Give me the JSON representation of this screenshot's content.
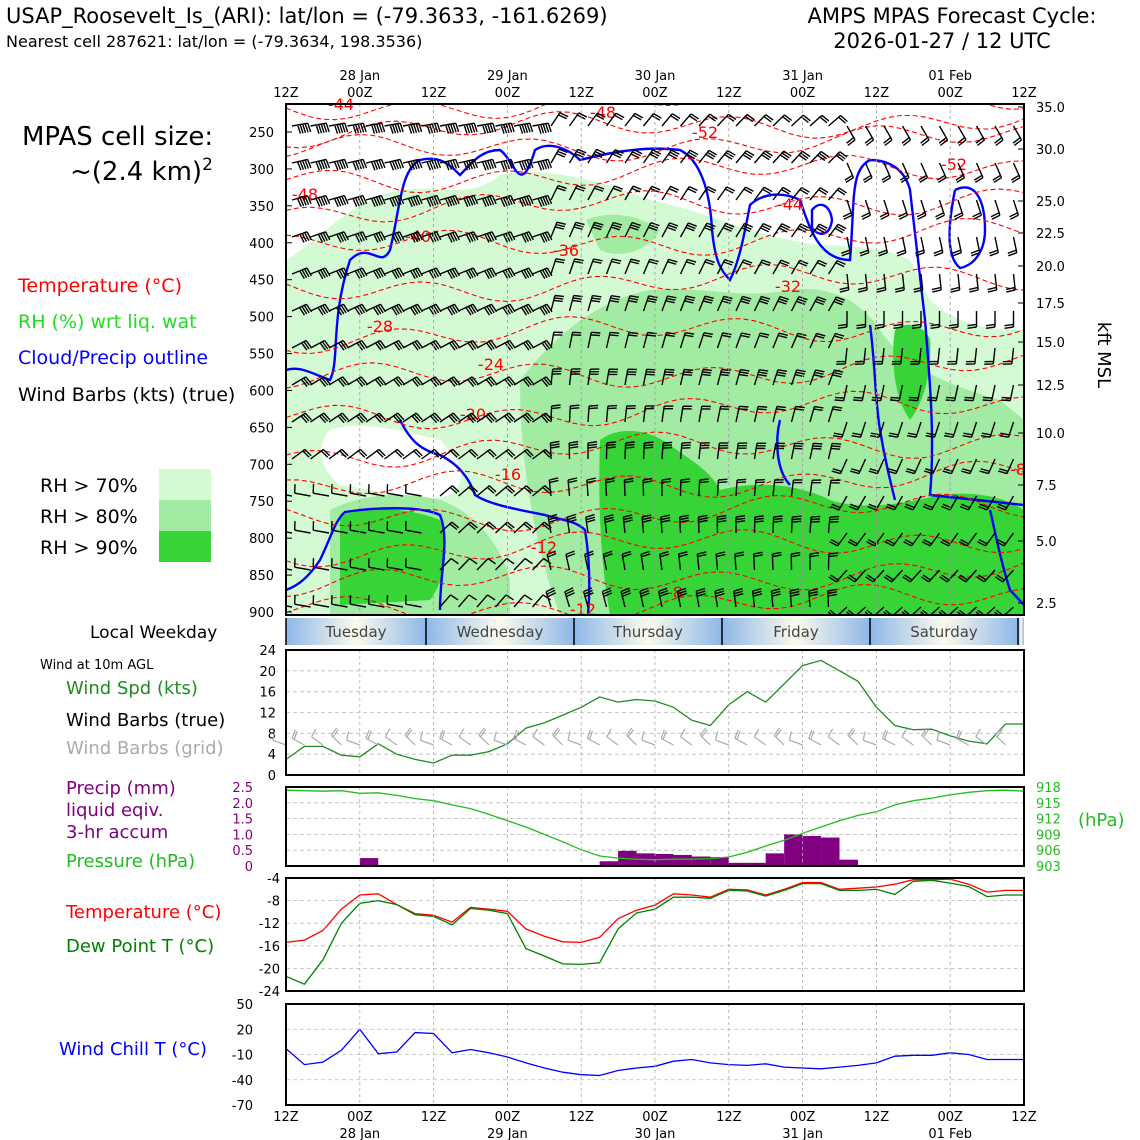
{
  "header": {
    "station_line": "USAP_Roosevelt_Is_(ARI): lat/lon = (-79.3633, -161.6269)",
    "cell_line": "Nearest cell 287621: lat/lon = (-79.3634, 198.3536)",
    "forecast_line1": "AMPS MPAS Forecast Cycle:",
    "forecast_line2": "2026-01-27 / 12 UTC"
  },
  "left_legend": {
    "cell_size_1": "MPAS cell size:",
    "cell_size_2": "~(2.4 km)",
    "cell_size_sup": "2",
    "temperature": "Temperature (°C)",
    "rh": "RH (%) wrt liq. wat",
    "cloud": "Cloud/Precip outline",
    "barbs": "Wind Barbs (kts) (true)",
    "rh70": "RH > 70%",
    "rh80": "RH > 80%",
    "rh90": "RH > 90%",
    "local_weekday": "Local Weekday",
    "wind10m": "Wind at 10m AGL",
    "wind_spd": "Wind Spd (kts)",
    "wind_barbs_true": "Wind Barbs (true)",
    "wind_barbs_grid": "Wind Barbs (grid)",
    "precip1": "Precip (mm)",
    "precip2": "liquid eqiv.",
    "precip3": "3-hr accum",
    "pressure": "Pressure (hPa)",
    "temp2": "Temperature (°C)",
    "dewpoint": "Dew Point T (°C)",
    "windchill": "Wind Chill T (°C)"
  },
  "colors": {
    "rh70": "#d4fad4",
    "rh80": "#a2eba2",
    "rh90": "#36d436",
    "temperature": "#ff0000",
    "cloud": "#0000ff",
    "precip": "#800080",
    "pressure": "#22bb22",
    "wind_speed": "#228b22",
    "grid_barb": "#aaaaaa"
  },
  "time_axis": {
    "top_ticks": [
      "12Z",
      "00Z",
      "12Z",
      "00Z",
      "12Z",
      "00Z",
      "12Z",
      "00Z",
      "12Z",
      "00Z",
      "12Z"
    ],
    "date_labels": [
      "28 Jan",
      "29 Jan",
      "30 Jan",
      "31 Jan",
      "01 Feb"
    ],
    "weekdays": [
      "Tuesday",
      "Wednesday",
      "Thursday",
      "Friday",
      "Saturday"
    ]
  },
  "chart_data": [
    {
      "type": "heatmap",
      "name": "vertical cross-section",
      "y_left_ticks": [
        "250",
        "300",
        "350",
        "400",
        "450",
        "500",
        "550",
        "600",
        "650",
        "700",
        "750",
        "800",
        "850",
        "900"
      ],
      "y_right_ticks": [
        "35.0",
        "30.0",
        "25.0",
        "22.5",
        "20.0",
        "17.5",
        "15.0",
        "12.5",
        "10.0",
        "7.5",
        "5.0",
        "2.5"
      ],
      "y_right_label": "kft MSL",
      "contour_labels": [
        "-48",
        "-52",
        "-52",
        "-48",
        "-44",
        "-40",
        "-36",
        "-32",
        "-28",
        "-24",
        "-20",
        "-16",
        "-12",
        "-12",
        "-8",
        "-8",
        "-44"
      ]
    },
    {
      "type": "line",
      "name": "wind speed",
      "x_hours": [
        0,
        3,
        6,
        9,
        12,
        15,
        18,
        21,
        24,
        27,
        30,
        33,
        36,
        39,
        42,
        45,
        48,
        51,
        54,
        57,
        60,
        63,
        66,
        69,
        72,
        75,
        78,
        81,
        84,
        87,
        90,
        93,
        96,
        99,
        102,
        105,
        108,
        111,
        114,
        117,
        120
      ],
      "values": [
        3,
        5.5,
        5.5,
        3.8,
        3.5,
        6,
        4,
        3,
        2.3,
        3.8,
        3.8,
        4.5,
        6,
        9,
        10,
        11.5,
        13,
        15,
        14,
        14.5,
        14.2,
        13,
        10.5,
        9.5,
        13.5,
        16,
        14,
        17.5,
        21,
        22,
        20,
        18,
        13,
        9.5,
        8.7,
        8.8,
        7.5,
        6.5,
        6,
        9.8,
        9.8
      ],
      "ylim": [
        0,
        24
      ],
      "yticks": [
        "0",
        "4",
        "8",
        "12",
        "16",
        "20",
        "24"
      ]
    },
    {
      "type": "bar",
      "name": "precip and pressure",
      "precip_bins": [
        {
          "start": 12,
          "end": 15,
          "value": 0.25
        },
        {
          "start": 51,
          "end": 54,
          "value": 0.15
        },
        {
          "start": 54,
          "end": 57,
          "value": 0.48
        },
        {
          "start": 57,
          "end": 60,
          "value": 0.4
        },
        {
          "start": 60,
          "end": 63,
          "value": 0.38
        },
        {
          "start": 63,
          "end": 66,
          "value": 0.35
        },
        {
          "start": 66,
          "end": 69,
          "value": 0.3
        },
        {
          "start": 69,
          "end": 72,
          "value": 0.28
        },
        {
          "start": 72,
          "end": 75,
          "value": 0.1
        },
        {
          "start": 75,
          "end": 78,
          "value": 0.1
        },
        {
          "start": 78,
          "end": 81,
          "value": 0.4
        },
        {
          "start": 81,
          "end": 84,
          "value": 1.0
        },
        {
          "start": 84,
          "end": 87,
          "value": 0.95
        },
        {
          "start": 87,
          "end": 90,
          "value": 0.9
        },
        {
          "start": 90,
          "end": 93,
          "value": 0.2
        }
      ],
      "precip_ylim": [
        0,
        2.5
      ],
      "precip_yticks": [
        "0",
        "0.5",
        "1.0",
        "1.5",
        "2.0",
        "2.5"
      ],
      "pressure_values": [
        917.4,
        917.3,
        917.2,
        917.3,
        916.8,
        916.9,
        916.4,
        915.8,
        915.4,
        914.6,
        913.9,
        912.8,
        911.6,
        910.4,
        909.0,
        907.6,
        906.1,
        904.9,
        904.5,
        904.3,
        904.2,
        904.3,
        904.3,
        904.4,
        904.7,
        905.6,
        906.8,
        907.9,
        909.2,
        910.4,
        911.6,
        912.6,
        913.3,
        914.6,
        915.4,
        915.9,
        916.5,
        917.0,
        917.3,
        917.4,
        917.2
      ],
      "pressure_ylim": [
        903,
        918
      ],
      "pressure_yticks": [
        "903",
        "906",
        "909",
        "912",
        "915",
        "918"
      ],
      "pressure_unit": "(hPa)"
    },
    {
      "type": "line",
      "name": "temperature and dew point",
      "temperature": [
        -15.4,
        -15,
        -13.3,
        -9.5,
        -7,
        -6.8,
        -8.7,
        -10.3,
        -10.6,
        -11.8,
        -9.2,
        -9.5,
        -9.9,
        -13,
        -14.3,
        -15.3,
        -15.4,
        -14.5,
        -11.2,
        -9.7,
        -8.8,
        -6.8,
        -7,
        -7.4,
        -6,
        -6.1,
        -7,
        -6,
        -4.8,
        -4.8,
        -6,
        -5.8,
        -5.6,
        -5.1,
        -4.3,
        -4.3,
        -4.2,
        -5.1,
        -6.5,
        -6.2,
        -6.2
      ],
      "dewpoint": [
        -21.4,
        -22.8,
        -18.5,
        -12,
        -8.5,
        -8,
        -8.7,
        -10.5,
        -10.8,
        -12.3,
        -9.4,
        -9.7,
        -10.3,
        -16.5,
        -17.8,
        -19.2,
        -19.3,
        -19,
        -13,
        -10.2,
        -9.5,
        -7.4,
        -7.4,
        -7.6,
        -6.2,
        -6.3,
        -7.2,
        -6.2,
        -5,
        -5,
        -6.2,
        -6.2,
        -6,
        -6.9,
        -4.6,
        -4.4,
        -4.9,
        -5.5,
        -7.3,
        -7,
        -7
      ],
      "ylim": [
        -24,
        -4
      ],
      "yticks": [
        "-4",
        "-8",
        "-12",
        "-16",
        "-20",
        "-24"
      ]
    },
    {
      "type": "line",
      "name": "wind chill",
      "values": [
        -3,
        -22,
        -19,
        -5,
        20,
        -9,
        -7,
        16,
        15,
        -8,
        -4,
        -8,
        -13,
        -20,
        -26,
        -31,
        -34,
        -35,
        -29,
        -26,
        -24,
        -18,
        -16,
        -20,
        -22,
        -23,
        -21,
        -25,
        -26,
        -27,
        -25,
        -23,
        -20,
        -12,
        -11,
        -11,
        -8,
        -10,
        -16,
        -16,
        -16
      ],
      "ylim": [
        -70,
        50
      ],
      "yticks": [
        "50",
        "20",
        "-10",
        "-40",
        "-70"
      ]
    }
  ]
}
